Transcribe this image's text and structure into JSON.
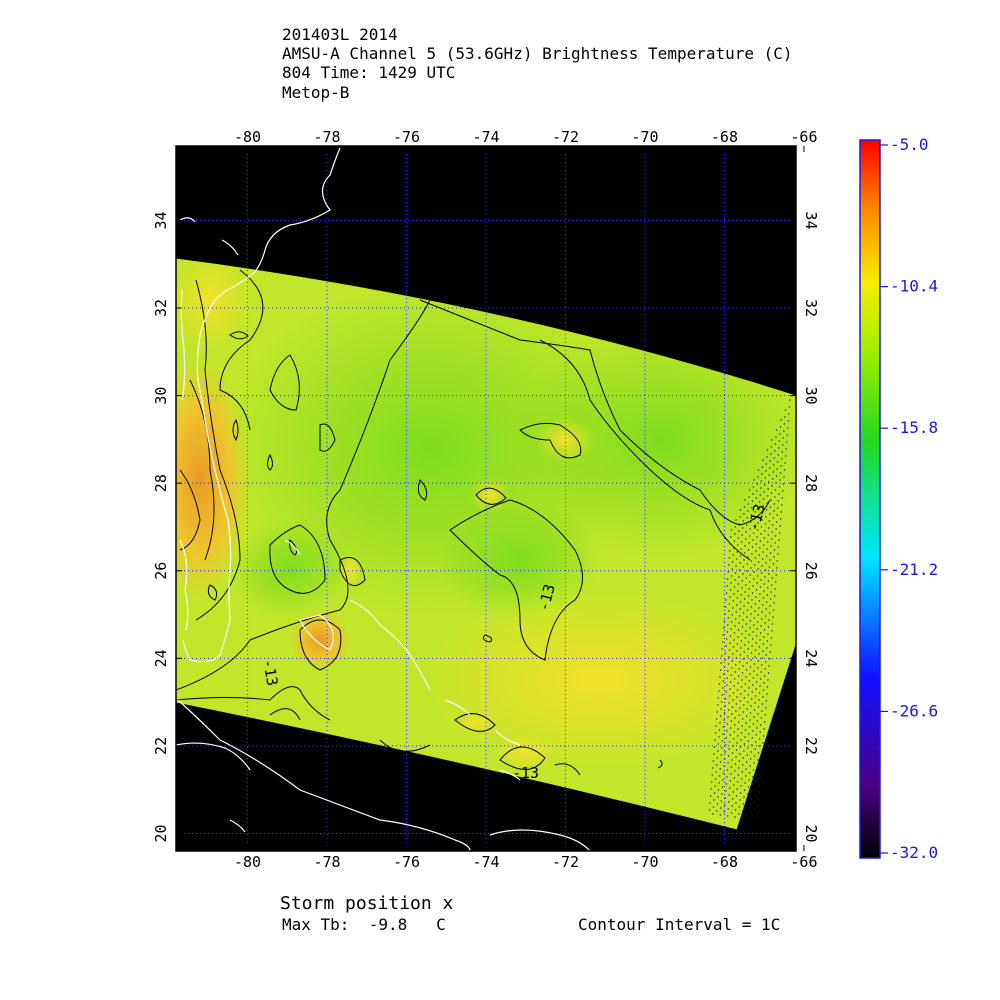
{
  "title": {
    "line1": "201403L 2014",
    "line2": "AMSU-A Channel 5 (53.6GHz) Brightness Temperature (C)",
    "line3": "804 Time: 1429 UTC",
    "line4": "Metop-B"
  },
  "map": {
    "lon_ticks": [
      -80,
      -78,
      -76,
      -74,
      -72,
      -70,
      -68,
      -66
    ],
    "lat_ticks": [
      20,
      22,
      24,
      26,
      28,
      30,
      32,
      34
    ],
    "lon_range": [
      -81.8,
      -66.2
    ],
    "lat_range": [
      19.6,
      35.7
    ],
    "contour_labels": [
      "-13",
      "-13",
      "-13",
      "-13"
    ],
    "colors": {
      "background": "#000000",
      "coast": "#ffffff",
      "field_base": "#b9e82a",
      "field_warm": "#e8b02a",
      "field_cool": "#8fe21e",
      "grid": "#2a2aff"
    }
  },
  "colorbar": {
    "labels": [
      "-5.0",
      "-10.4",
      "-15.8",
      "-21.2",
      "-26.6",
      "-32.0"
    ],
    "max": -5.0,
    "min": -32.0
  },
  "footer": {
    "storm_position": "Storm position x",
    "max_tb": "Max Tb:  -9.8   C",
    "contour_interval": "Contour Interval = 1C"
  }
}
